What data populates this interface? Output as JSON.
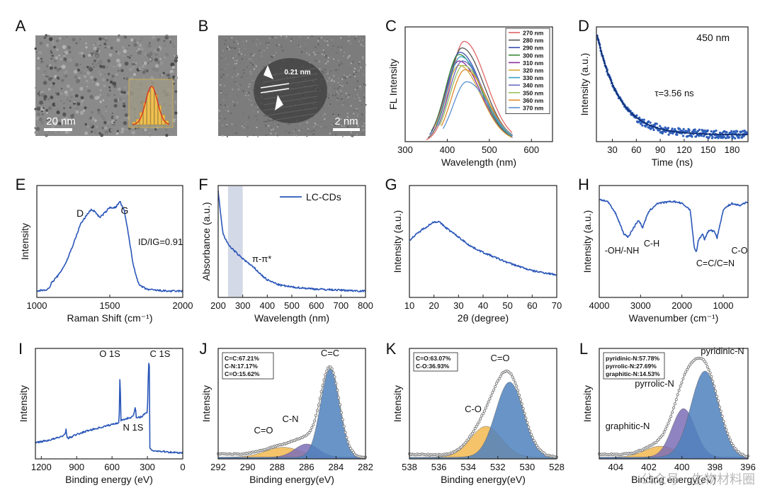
{
  "figure": {
    "watermark": "公众号 · 生物材料圈"
  },
  "chart_data": [
    {
      "letter": "A",
      "type": "image",
      "micrograph_scale_label": "20 nm",
      "inset": {
        "type": "bar",
        "values": [
          2,
          4,
          9,
          16,
          24,
          28,
          22,
          14,
          7,
          3
        ],
        "fit": "gaussian"
      }
    },
    {
      "letter": "B",
      "type": "image",
      "micrograph_scale_label": "2 nm",
      "lattice_spacing_label": "0.21 nm"
    },
    {
      "letter": "C",
      "type": "line",
      "xlabel": "Wavelength (nm)",
      "ylabel": "FL Intensity",
      "xlim": [
        300,
        650
      ],
      "xticks": [
        "300",
        "400",
        "500",
        "600"
      ],
      "series": [
        {
          "name": "270 nm",
          "color": "#e06666",
          "peak": 440,
          "amp": 0.92
        },
        {
          "name": "280 nm",
          "color": "#555555",
          "peak": 435,
          "amp": 0.86
        },
        {
          "name": "290 nm",
          "color": "#3a4fb0",
          "peak": 430,
          "amp": 0.82
        },
        {
          "name": "300 nm",
          "color": "#3b8a3b",
          "peak": 428,
          "amp": 0.8
        },
        {
          "name": "310 nm",
          "color": "#8b2ea0",
          "peak": 428,
          "amp": 0.74
        },
        {
          "name": "320 nm",
          "color": "#d4a93a",
          "peak": 428,
          "amp": 0.7
        },
        {
          "name": "330 nm",
          "color": "#37a2c4",
          "peak": 432,
          "amp": 0.78
        },
        {
          "name": "340 nm",
          "color": "#6d6dc0",
          "peak": 436,
          "amp": 0.74
        },
        {
          "name": "350 nm",
          "color": "#9ac15a",
          "peak": 438,
          "amp": 0.7
        },
        {
          "name": "360 nm",
          "color": "#e08a2a",
          "peak": 442,
          "amp": 0.66
        },
        {
          "name": "370 nm",
          "color": "#5b8fd0",
          "peak": 446,
          "amp": 0.55
        }
      ]
    },
    {
      "letter": "D",
      "type": "scatter",
      "xlabel": "Time (ns)",
      "ylabel": "Intensity (a.u.)",
      "xlim": [
        10,
        200
      ],
      "xticks": [
        "30",
        "60",
        "90",
        "120",
        "150",
        "180"
      ],
      "annotation": "τ=3.56 ns",
      "corner_label": "450 nm",
      "tau_ns": 3.56
    },
    {
      "letter": "E",
      "type": "line",
      "xlabel": "Raman Shift (cm⁻¹)",
      "ylabel": "Intensity",
      "xlim": [
        1000,
        2000
      ],
      "xticks": [
        "1000",
        "1500",
        "2000"
      ],
      "peak_labels": [
        "D",
        "G"
      ],
      "ratio_label": "ID/IG=0.91",
      "x": [
        1000,
        1080,
        1100,
        1150,
        1200,
        1250,
        1300,
        1340,
        1370,
        1400,
        1430,
        1460,
        1500,
        1540,
        1570,
        1600,
        1630,
        1660,
        1700,
        1750,
        1800,
        1900,
        2000
      ],
      "values": [
        0.02,
        0.04,
        0.1,
        0.18,
        0.3,
        0.48,
        0.68,
        0.76,
        0.82,
        0.8,
        0.74,
        0.78,
        0.84,
        0.84,
        0.9,
        0.8,
        0.56,
        0.28,
        0.08,
        0.04,
        0.03,
        0.02,
        0.02
      ]
    },
    {
      "letter": "F",
      "type": "line",
      "xlabel": "Wavelength (nm)",
      "ylabel": "Absorbance (a.u.)",
      "xlim": [
        200,
        800
      ],
      "xticks": [
        "200",
        "300",
        "400",
        "500",
        "600",
        "700",
        "800"
      ],
      "legend": "LC-CDs",
      "annotation": "π-π*",
      "shaded_band": [
        240,
        300
      ],
      "x": [
        200,
        210,
        220,
        240,
        260,
        280,
        300,
        320,
        350,
        380,
        400,
        450,
        500,
        550,
        600,
        700,
        800
      ],
      "values": [
        1.0,
        0.78,
        0.58,
        0.48,
        0.43,
        0.38,
        0.34,
        0.3,
        0.24,
        0.17,
        0.13,
        0.08,
        0.06,
        0.05,
        0.04,
        0.03,
        0.02
      ]
    },
    {
      "letter": "G",
      "type": "line",
      "xlabel": "2θ (degree)",
      "ylabel": "Intensity (a.u.)",
      "xlim": [
        10,
        70
      ],
      "xticks": [
        "10",
        "20",
        "30",
        "40",
        "50",
        "60",
        "70"
      ],
      "x": [
        10,
        15,
        20,
        22,
        25,
        30,
        35,
        40,
        45,
        50,
        55,
        60,
        65,
        70
      ],
      "values": [
        0.52,
        0.62,
        0.7,
        0.7,
        0.64,
        0.55,
        0.46,
        0.4,
        0.35,
        0.3,
        0.26,
        0.22,
        0.2,
        0.18
      ]
    },
    {
      "letter": "H",
      "type": "line",
      "xlabel": "Wavenumber (cm⁻¹)",
      "ylabel": "Intensity (a.u.)",
      "xlim": [
        4000,
        400
      ],
      "xticks": [
        "4000",
        "3000",
        "2000",
        "1000"
      ],
      "peak_labels": [
        "-OH/-NH",
        "C-H",
        "C=C/C=N",
        "C-O"
      ],
      "x": [
        4000,
        3800,
        3600,
        3400,
        3300,
        3200,
        3050,
        2950,
        2900,
        2800,
        2600,
        2200,
        2000,
        1800,
        1700,
        1650,
        1600,
        1500,
        1450,
        1380,
        1300,
        1200,
        1150,
        1050,
        1000,
        800,
        600,
        400
      ],
      "values": [
        0.92,
        0.9,
        0.78,
        0.58,
        0.55,
        0.62,
        0.72,
        0.64,
        0.7,
        0.8,
        0.88,
        0.9,
        0.88,
        0.82,
        0.45,
        0.4,
        0.52,
        0.58,
        0.52,
        0.6,
        0.62,
        0.6,
        0.54,
        0.72,
        0.82,
        0.88,
        0.86,
        0.9
      ]
    },
    {
      "letter": "I",
      "type": "line",
      "xlabel": "Binding energy (eV)",
      "ylabel": "Intensity",
      "xlim": [
        1250,
        0
      ],
      "xticks": [
        "1200",
        "900",
        "600",
        "300",
        "0"
      ],
      "peak_labels": [
        "O 1S",
        "N 1S",
        "C 1S"
      ],
      "x": [
        1250,
        1150,
        1050,
        1000,
        990,
        980,
        900,
        800,
        700,
        600,
        540,
        532,
        525,
        500,
        420,
        401,
        395,
        350,
        300,
        290,
        284,
        280,
        250,
        150,
        50,
        0
      ],
      "values": [
        0.12,
        0.14,
        0.17,
        0.2,
        0.25,
        0.16,
        0.2,
        0.24,
        0.27,
        0.3,
        0.32,
        0.85,
        0.34,
        0.35,
        0.38,
        0.48,
        0.36,
        0.38,
        0.42,
        0.9,
        0.95,
        0.06,
        0.04,
        0.03,
        0.02,
        0.02
      ]
    },
    {
      "letter": "J",
      "type": "area",
      "xlabel": "Binding energy(eV)",
      "ylabel": "Intensity",
      "xlim": [
        292,
        282
      ],
      "xticks": [
        "292",
        "290",
        "288",
        "286",
        "284",
        "282"
      ],
      "table": [
        "C=C:67.21%",
        "C-N:17.17%",
        "C=O:15.62%"
      ],
      "components": [
        {
          "name": "C=C",
          "center": 284.4,
          "sigma": 0.65,
          "amp": 0.8,
          "color": "#4f81bd"
        },
        {
          "name": "C-N",
          "center": 286.0,
          "sigma": 0.8,
          "amp": 0.12,
          "color": "#7b6fb6"
        },
        {
          "name": "C=O",
          "center": 287.6,
          "sigma": 1.2,
          "amp": 0.09,
          "color": "#f2b950"
        }
      ]
    },
    {
      "letter": "K",
      "type": "area",
      "xlabel": "Binding energy(eV)",
      "ylabel": "Intensity",
      "xlim": [
        538,
        528
      ],
      "xticks": [
        "538",
        "536",
        "534",
        "532",
        "530",
        "528"
      ],
      "table": [
        "C=O:63.07%",
        "C-O:36.93%"
      ],
      "components": [
        {
          "name": "C=O",
          "center": 531.2,
          "sigma": 0.95,
          "amp": 0.68,
          "color": "#4f81bd"
        },
        {
          "name": "C-O",
          "center": 532.8,
          "sigma": 1.05,
          "amp": 0.28,
          "color": "#f2b950"
        }
      ]
    },
    {
      "letter": "L",
      "type": "area",
      "xlabel": "Binding energy(eV)",
      "ylabel": "Intensity",
      "xlim": [
        405,
        396
      ],
      "xticks": [
        "404",
        "402",
        "400",
        "398",
        "396"
      ],
      "table": [
        "pyridinic-N:57.78%",
        "pyrrolic-N:27.69%",
        "graphitic-N:14.53%"
      ],
      "components": [
        {
          "name": "pyridinic-N",
          "center": 398.6,
          "sigma": 0.85,
          "amp": 0.78,
          "color": "#4f81bd"
        },
        {
          "name": "pyrrolic-N",
          "center": 399.9,
          "sigma": 0.7,
          "amp": 0.44,
          "color": "#7b6fb6"
        },
        {
          "name": "graphitic-N",
          "center": 401.3,
          "sigma": 0.95,
          "amp": 0.1,
          "color": "#f2b950"
        }
      ]
    }
  ]
}
